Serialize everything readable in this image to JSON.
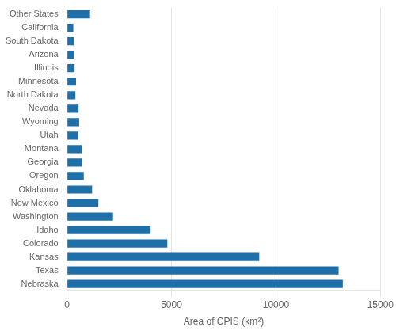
{
  "chart_data": {
    "type": "bar",
    "orientation": "horizontal",
    "categories": [
      "Nebraska",
      "Texas",
      "Kansas",
      "Colorado",
      "Idaho",
      "Washington",
      "New Mexico",
      "Oklahoma",
      "Oregon",
      "Georgia",
      "Montana",
      "Utah",
      "Wyoming",
      "Nevada",
      "North Dakota",
      "Minnesota",
      "Illinois",
      "Arizona",
      "South Dakota",
      "California",
      "Other States"
    ],
    "values": [
      13200,
      13000,
      9200,
      4800,
      4000,
      2200,
      1500,
      1200,
      800,
      720,
      700,
      530,
      580,
      550,
      400,
      430,
      360,
      350,
      320,
      300,
      1100
    ],
    "color": "#1f6fa8",
    "xlabel": "Area of CPIS (km²)",
    "xlim": [
      0,
      15000
    ],
    "xticks": [
      0,
      5000,
      10000,
      15000
    ],
    "grid": true
  }
}
